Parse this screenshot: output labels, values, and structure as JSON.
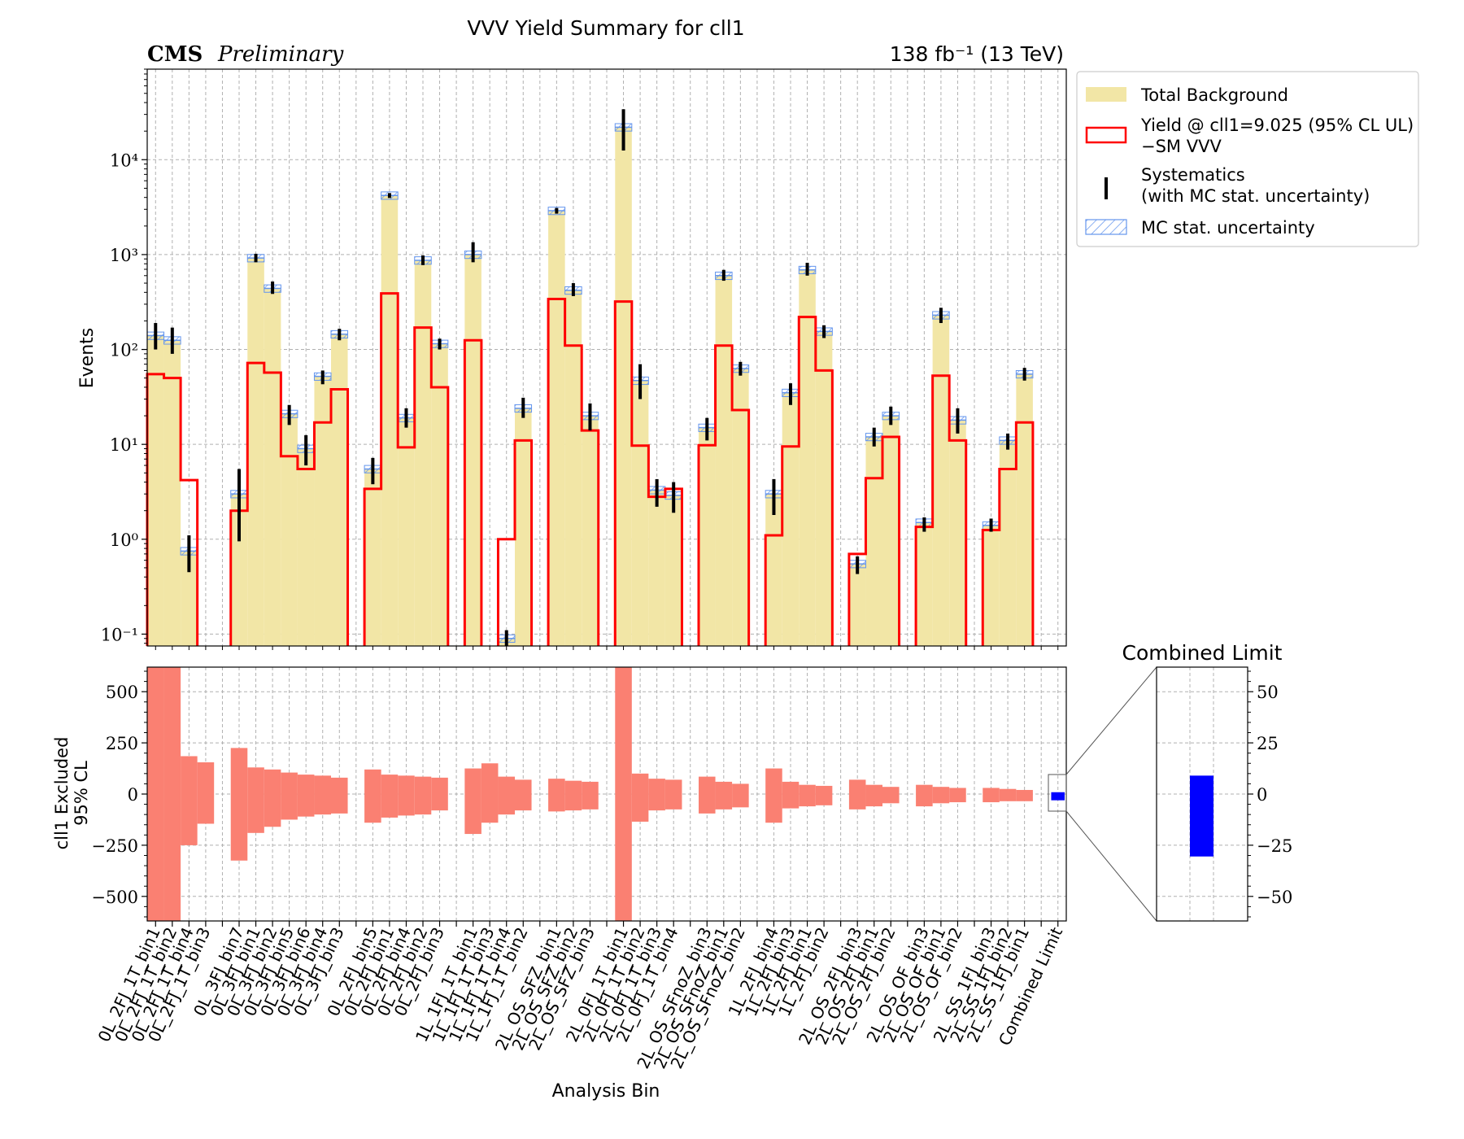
{
  "title": "VVV Yield Summary for cll1",
  "cms_label": "CMS",
  "cms_sublabel": "Preliminary",
  "lumi_label": "138 fb⁻¹ (13 TeV)",
  "legend": {
    "total_background": "Total Background",
    "yield_line1": "Yield @ cll1=9.025 (95% CL UL)",
    "yield_line2": "−SM VVV",
    "syst_line1": "Systematics",
    "syst_line2": "(with MC stat. uncertainty)",
    "mc_stat": "MC stat. uncertainty"
  },
  "colors": {
    "background_fill": "#f2e6a6",
    "signal_line": "#ff0000",
    "mc_stat_hatch": "#6495ed",
    "systematics": "#000000",
    "excluded_fill": "#fa8072",
    "combined_fill": "#0000ff"
  },
  "chart_data": [
    {
      "type": "bar",
      "panel": "upper",
      "yscale": "log",
      "ylabel": "Events",
      "ylim": [
        0.075,
        90000
      ],
      "yticks": [
        0.1,
        1,
        10,
        100,
        1000,
        10000
      ],
      "ytick_labels": [
        "10⁻¹",
        "10⁰",
        "10¹",
        "10²",
        "10³",
        "10⁴"
      ],
      "grid": true,
      "legend_position": "outside-right",
      "categories": [
        "0L_2FJ_1T_bin1",
        "0L_2FJ_1T_bin2",
        "0L_2FJ_1T_bin4",
        "0L_2FJ_1T_bin3",
        "",
        "0L_3FJ_bin7",
        "0L_3FJ_bin1",
        "0L_3FJ_bin2",
        "0L_3FJ_bin5",
        "0L_3FJ_bin6",
        "0L_3FJ_bin4",
        "0L_3FJ_bin3",
        "",
        "0L_2FJ_bin5",
        "0L_2FJ_bin1",
        "0L_2FJ_bin4",
        "0L_2FJ_bin2",
        "0L_2FJ_bin3",
        "",
        "1L_1FJ_1T_bin1",
        "1L_1FJ_1T_bin3",
        "1L_1FJ_1T_bin4",
        "1L_1FJ_1T_bin2",
        "",
        "2L_OS_SFZ_bin1",
        "2L_OS_SFZ_bin2",
        "2L_OS_SFZ_bin3",
        "",
        "2L_0FJ_1T_bin1",
        "2L_0FJ_1T_bin2",
        "2L_0FJ_1T_bin3",
        "2L_0FJ_1T_bin4",
        "",
        "2L_OS_SFnoZ_bin3",
        "2L_OS_SFnoZ_bin1",
        "2L_OS_SFnoZ_bin2",
        "",
        "1L_2FJ_bin4",
        "1L_2FJ_bin3",
        "1L_2FJ_bin1",
        "1L_2FJ_bin2",
        "",
        "2L_OS_2FJ_bin3",
        "2L_OS_2FJ_bin1",
        "2L_OS_2FJ_bin2",
        "",
        "2L_OS_OF_bin3",
        "2L_OS_OF_bin1",
        "2L_OS_OF_bin2",
        "",
        "2L_SS_1FJ_bin3",
        "2L_SS_1FJ_bin2",
        "2L_SS_1FJ_bin1",
        "",
        "Combined Limit"
      ],
      "xlabel": "Analysis Bin",
      "series": [
        {
          "name": "Total Background",
          "values": [
            140,
            125,
            0.75,
            0,
            0,
            3,
            920,
            440,
            21,
            9,
            52,
            145,
            0,
            5.5,
            4200,
            19,
            870,
            115,
            0,
            1000,
            0,
            0.09,
            24,
            0,
            2900,
            420,
            20,
            0,
            22000,
            47,
            3.3,
            2.9,
            0,
            15,
            600,
            63,
            0,
            3,
            35,
            690,
            155,
            0,
            0.55,
            12,
            20,
            0,
            1.5,
            230,
            18,
            0,
            1.4,
            11,
            55,
            0,
            0
          ]
        },
        {
          "name": "Yield @ cll1=9.025 (95% CL UL)",
          "values": [
            55,
            50,
            4.2,
            0,
            0,
            2,
            72,
            57,
            7.5,
            5.5,
            17,
            38,
            0,
            3.4,
            390,
            9.3,
            170,
            40,
            0,
            125,
            0,
            1,
            11,
            0,
            340,
            110,
            14,
            0,
            320,
            9.7,
            2.8,
            3.4,
            0,
            9.8,
            110,
            23,
            0,
            1.1,
            9.5,
            220,
            60,
            0,
            0.7,
            4.4,
            12,
            0,
            1.35,
            53,
            11,
            0,
            1.25,
            5.5,
            17,
            0,
            0
          ]
        },
        {
          "name": "Systematics",
          "low": [
            100,
            90,
            0.45,
            0,
            0,
            0.95,
            830,
            385,
            16,
            6,
            43,
            125,
            0,
            3.8,
            3950,
            15,
            775,
            100,
            0,
            830,
            0,
            0.07,
            19,
            0,
            2700,
            365,
            14,
            0,
            12500,
            30,
            2.2,
            1.9,
            0,
            11,
            530,
            53,
            0,
            1.8,
            26,
            600,
            132,
            0,
            0.43,
            9.5,
            16,
            0,
            1.2,
            190,
            13,
            0,
            1.2,
            8.8,
            47,
            0
          ],
          "high": [
            190,
            170,
            1.1,
            0,
            0,
            5.5,
            1020,
            520,
            26,
            12.5,
            60,
            165,
            0,
            7.2,
            4450,
            24,
            980,
            130,
            0,
            1350,
            0,
            0.11,
            31,
            0,
            3100,
            500,
            27,
            0,
            34000,
            70,
            4.3,
            4,
            0,
            19,
            690,
            74,
            0,
            4.3,
            44,
            820,
            180,
            0,
            0.66,
            15,
            25,
            0,
            1.7,
            275,
            24,
            0,
            1.65,
            13,
            64,
            0
          ]
        }
      ]
    },
    {
      "type": "bar",
      "panel": "lower",
      "ylabel_line1": "cll1 Excluded",
      "ylabel_line2": "95% CL",
      "ylim": [
        -620,
        620
      ],
      "yticks": [
        500,
        250,
        0,
        -250,
        -500
      ],
      "ytick_labels": [
        "500",
        "250",
        "0",
        "−250",
        "−500"
      ],
      "series": [
        {
          "name": "upper",
          "values": [
            650,
            650,
            185,
            155,
            0,
            225,
            130,
            120,
            105,
            95,
            90,
            80,
            0,
            120,
            95,
            90,
            85,
            80,
            0,
            125,
            150,
            85,
            70,
            0,
            75,
            65,
            60,
            0,
            650,
            100,
            75,
            70,
            0,
            85,
            60,
            50,
            0,
            125,
            60,
            45,
            40,
            0,
            70,
            45,
            35,
            0,
            45,
            35,
            30,
            0,
            30,
            25,
            20,
            0,
            0
          ]
        },
        {
          "name": "lower",
          "values": [
            -650,
            -650,
            -250,
            -145,
            0,
            -325,
            -190,
            -160,
            -125,
            -110,
            -100,
            -95,
            0,
            -140,
            -115,
            -105,
            -100,
            -80,
            0,
            -195,
            -140,
            -100,
            -80,
            0,
            -85,
            -80,
            -75,
            0,
            -650,
            -135,
            -80,
            -75,
            0,
            -95,
            -75,
            -65,
            0,
            -140,
            -70,
            -60,
            -55,
            0,
            -75,
            -60,
            -45,
            0,
            -60,
            -45,
            -40,
            0,
            -40,
            -35,
            -35,
            0,
            0
          ]
        }
      ]
    },
    {
      "type": "bar",
      "panel": "inset",
      "title": "Combined Limit",
      "ylim": [
        -62,
        62
      ],
      "yticks": [
        50,
        25,
        0,
        -25,
        -50
      ],
      "ytick_labels": [
        "50",
        "25",
        "0",
        "−25",
        "−50"
      ],
      "series": [
        {
          "name": "Combined Limit",
          "low": -30.5,
          "high": 9
        }
      ]
    }
  ]
}
